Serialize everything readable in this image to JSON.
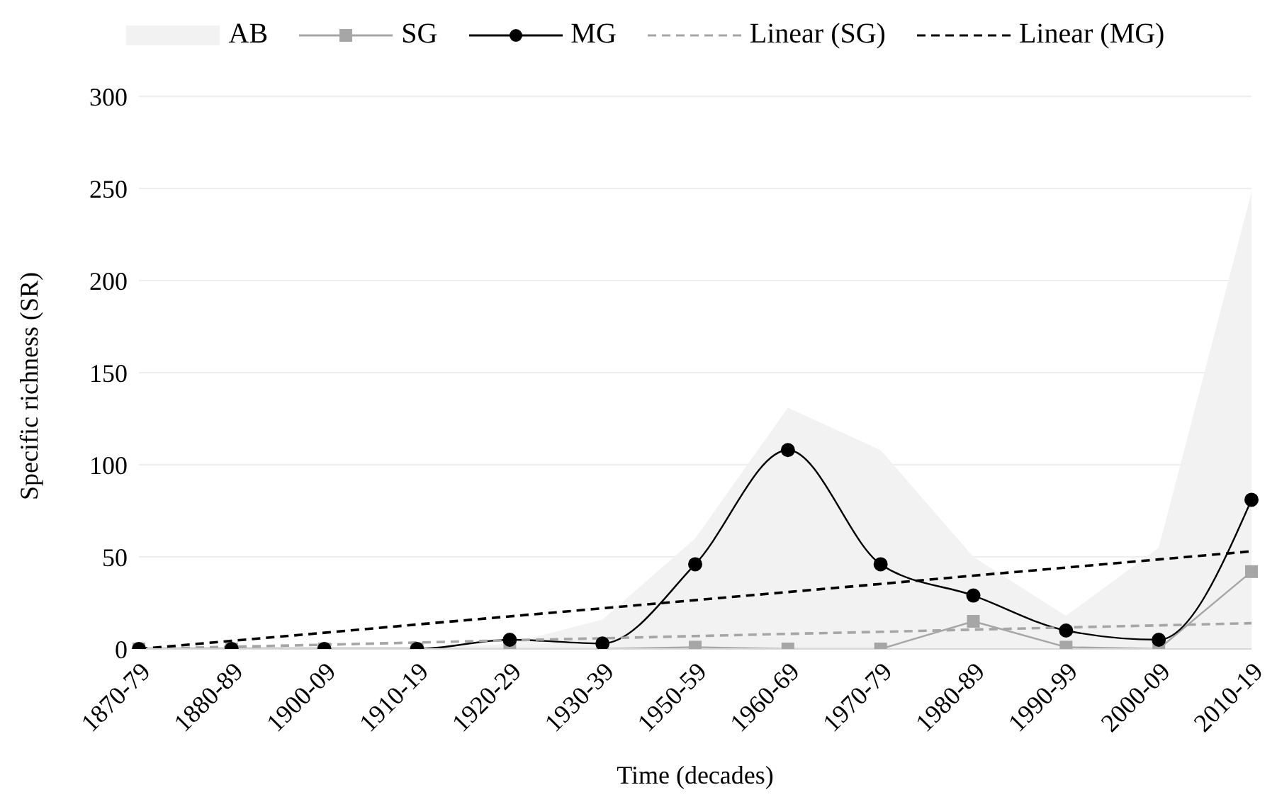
{
  "chart_data": {
    "type": "line",
    "xlabel": "Time (decades)",
    "ylabel": "Specific richness (SR)",
    "categories": [
      "1870-79",
      "1880-89",
      "1900-09",
      "1910-19",
      "1920-29",
      "1930-39",
      "1950-59",
      "1960-69",
      "1970-79",
      "1980-89",
      "1990-99",
      "2000-09",
      "2010-19"
    ],
    "ylim": [
      0,
      300
    ],
    "yticks": [
      0,
      50,
      100,
      150,
      200,
      250,
      300
    ],
    "grid": "y",
    "legend": "top",
    "series": [
      {
        "name": "AB",
        "type": "area",
        "color": "#f2f2f2",
        "values": [
          0,
          0,
          0,
          0,
          3,
          16,
          60,
          131,
          108,
          50,
          18,
          55,
          248
        ]
      },
      {
        "name": "SG",
        "color": "#a6a6a6",
        "marker": "square",
        "line_style": "solid",
        "values": [
          0,
          0,
          0,
          0,
          0,
          0,
          1,
          0,
          0,
          15,
          1,
          0,
          42
        ]
      },
      {
        "name": "MG",
        "color": "#000000",
        "marker": "circle",
        "line_style": "solid",
        "values": [
          0,
          0,
          0,
          0,
          5,
          3,
          46,
          108,
          46,
          29,
          10,
          5,
          81
        ]
      },
      {
        "name": "Linear (SG)",
        "color": "#a6a6a6",
        "marker": "none",
        "line_style": "dashed",
        "values": [
          0,
          1.2,
          2.3,
          3.5,
          4.7,
          5.8,
          7,
          8.2,
          9.3,
          10.5,
          11.7,
          12.8,
          14
        ]
      },
      {
        "name": "Linear (MG)",
        "color": "#000000",
        "marker": "none",
        "line_style": "dashed",
        "values": [
          0,
          4.4,
          8.8,
          13.3,
          17.7,
          22.1,
          26.5,
          30.9,
          35.3,
          39.8,
          44.2,
          48.6,
          53
        ]
      }
    ]
  }
}
